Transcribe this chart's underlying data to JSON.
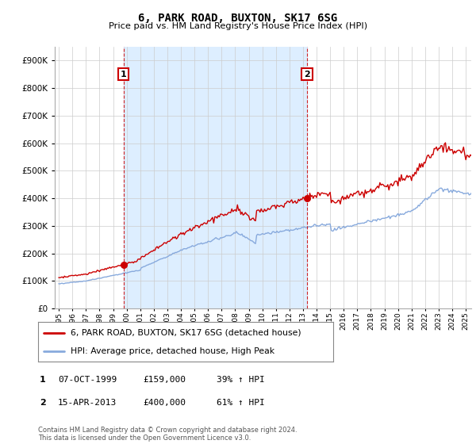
{
  "title": "6, PARK ROAD, BUXTON, SK17 6SG",
  "subtitle": "Price paid vs. HM Land Registry's House Price Index (HPI)",
  "legend_line1": "6, PARK ROAD, BUXTON, SK17 6SG (detached house)",
  "legend_line2": "HPI: Average price, detached house, High Peak",
  "footer": "Contains HM Land Registry data © Crown copyright and database right 2024.\nThis data is licensed under the Open Government Licence v3.0.",
  "transactions": [
    {
      "num": 1,
      "date": "07-OCT-1999",
      "price": "£159,000",
      "hpi": "39% ↑ HPI",
      "year": 1999.77
    },
    {
      "num": 2,
      "date": "15-APR-2013",
      "price": "£400,000",
      "hpi": "61% ↑ HPI",
      "year": 2013.29
    }
  ],
  "transaction_prices": [
    159000,
    400000
  ],
  "ylim": [
    0,
    950000
  ],
  "yticks": [
    0,
    100000,
    200000,
    300000,
    400000,
    500000,
    600000,
    700000,
    800000,
    900000
  ],
  "hpi_color": "#88aadd",
  "property_color": "#cc0000",
  "vline_color": "#cc0000",
  "shade_color": "#ddeeff",
  "background_color": "#ffffff",
  "grid_color": "#cccccc"
}
